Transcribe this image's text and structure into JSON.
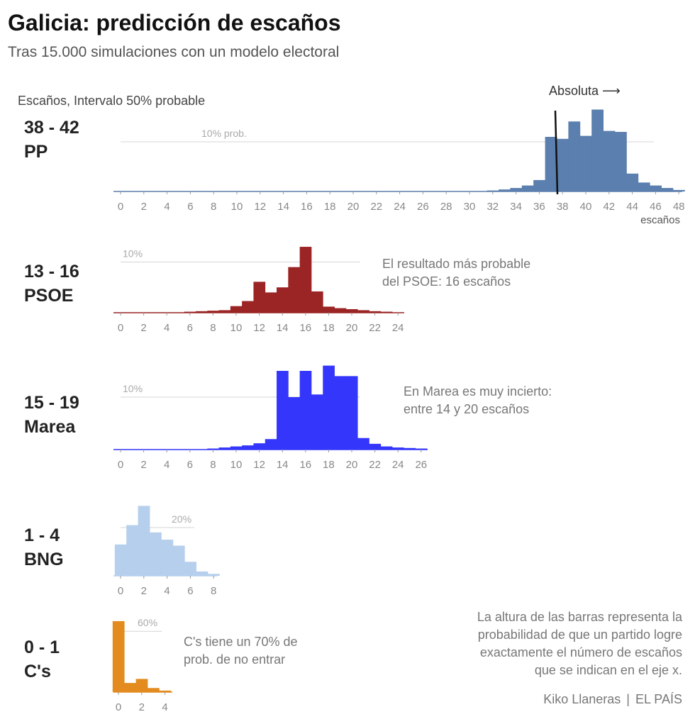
{
  "title": "Galicia: predicción de escaños",
  "subtitle": "Tras 15.000 simulaciones con un modelo electoral",
  "interval_note": "Escaños, Intervalo 50% probable",
  "absolute_label": "Absoluta ⟶",
  "axis_unit": "escaños",
  "colors": {
    "PP": "#5b7fae",
    "PSOE": "#9b2424",
    "Marea": "#3437fb",
    "BNG": "#b5cfed",
    "Cs": "#e38b1f"
  },
  "parties": [
    {
      "key": "PP",
      "name": "PP",
      "interval": "38 - 42"
    },
    {
      "key": "PSOE",
      "name": "PSOE",
      "interval": "13 - 16"
    },
    {
      "key": "Marea",
      "name": "Marea",
      "interval": "15 - 19"
    },
    {
      "key": "BNG",
      "name": "BNG",
      "interval": "1 - 4"
    },
    {
      "key": "Cs",
      "name": "C's",
      "interval": "0 - 1"
    }
  ],
  "annotations": {
    "psoe": [
      "El resultado más probable",
      "del PSOE: 16 escaños"
    ],
    "marea": [
      "En Marea es muy incierto:",
      "entre 14 y 20 escaños"
    ],
    "cs": [
      "C's tiene un 70% de",
      "prob. de no entrar"
    ],
    "explanation": [
      "La altura de las barras representa la",
      "probabilidad de que un partido logre",
      "exactamente el número de escaños",
      "que se indican en el eje x."
    ]
  },
  "credit": {
    "author": "Kiko Llaneras",
    "outlet": "EL PAÍS"
  },
  "chart_data": [
    {
      "type": "bar",
      "party": "PP",
      "xlabel": "escaños",
      "ref_label": "10% prob.",
      "ref_value": 10,
      "majority_line": 37.5,
      "ticks": [
        0,
        2,
        4,
        6,
        8,
        10,
        12,
        14,
        16,
        18,
        20,
        22,
        24,
        26,
        28,
        30,
        32,
        34,
        36,
        38,
        40,
        42,
        44,
        46,
        48
      ],
      "x": [
        32,
        33,
        34,
        35,
        36,
        37,
        38,
        39,
        40,
        41,
        42,
        43,
        44,
        45,
        46,
        47,
        48
      ],
      "values": [
        0.2,
        0.4,
        0.7,
        1.2,
        2.3,
        11.0,
        10.6,
        14.1,
        11.2,
        16.5,
        12.2,
        12.0,
        3.6,
        1.8,
        1.2,
        0.7,
        0.3
      ]
    },
    {
      "type": "bar",
      "party": "PSOE",
      "ref_label": "10%",
      "ref_value": 10,
      "ticks": [
        0,
        2,
        4,
        6,
        8,
        10,
        12,
        14,
        16,
        18,
        20,
        22,
        24
      ],
      "x": [
        6,
        7,
        8,
        9,
        10,
        11,
        12,
        13,
        14,
        15,
        16,
        17,
        18,
        19,
        20,
        21,
        22,
        23
      ],
      "values": [
        0.2,
        0.3,
        0.4,
        0.5,
        1.3,
        2.3,
        6.1,
        4.0,
        5.0,
        9.0,
        13.0,
        4.2,
        1.2,
        0.9,
        0.7,
        0.5,
        0.3,
        0.2
      ]
    },
    {
      "type": "bar",
      "party": "Marea",
      "ref_label": "10%",
      "ref_value": 10,
      "ticks": [
        0,
        2,
        4,
        6,
        8,
        10,
        12,
        14,
        16,
        18,
        20,
        22,
        24,
        26
      ],
      "x": [
        8,
        9,
        10,
        11,
        12,
        13,
        14,
        15,
        16,
        17,
        18,
        19,
        20,
        21,
        22,
        23,
        24,
        25,
        26
      ],
      "values": [
        0.2,
        0.4,
        0.6,
        0.8,
        1.2,
        2.0,
        15.0,
        10.0,
        15.0,
        10.5,
        16.0,
        14.0,
        14.0,
        2.2,
        1.1,
        0.6,
        0.4,
        0.3,
        0.2
      ]
    },
    {
      "type": "bar",
      "party": "BNG",
      "ref_label": "20%",
      "ref_value": 20,
      "ticks": [
        0,
        2,
        4,
        6,
        8
      ],
      "x": [
        0,
        1,
        2,
        3,
        4,
        5,
        6,
        7,
        8
      ],
      "values": [
        13.0,
        21.0,
        29.0,
        18.0,
        15.0,
        12.5,
        5.8,
        1.8,
        0.8
      ]
    },
    {
      "type": "bar",
      "party": "Cs",
      "ref_label": "60%",
      "ref_value": 60,
      "ticks": [
        0,
        2,
        4
      ],
      "x": [
        0,
        1,
        2,
        3,
        4
      ],
      "values": [
        70.0,
        9.0,
        13.0,
        4.0,
        1.5
      ]
    }
  ]
}
